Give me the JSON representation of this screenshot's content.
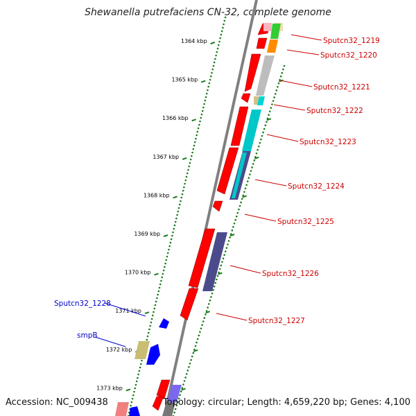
{
  "title": "Shewanella putrefaciens CN-32, complete genome",
  "footer": {
    "accession": "Accession: NC_009438",
    "summary": "Topology: circular; Length: 4,659,220 bp; Genes: 4,100"
  },
  "ruler": {
    "ticks": [
      "1364 kbp",
      "1365 kbp",
      "1366 kbp",
      "1367 kbp",
      "1368 kbp",
      "1369 kbp",
      "1370 kbp",
      "1371 kbp",
      "1372 kbp",
      "1373 kbp"
    ]
  },
  "gene_labels": {
    "right": [
      "Sputcn32_1219",
      "Sputcn32_1220",
      "Sputcn32_1221",
      "Sputcn32_1222",
      "Sputcn32_1223",
      "Sputcn32_1224",
      "Sputcn32_1225",
      "Sputcn32_1226",
      "Sputcn32_1227"
    ],
    "left": [
      "Sputcn32_1228",
      "smpB"
    ]
  },
  "colors": {
    "gene_label_right": "#cc0000",
    "gene_label_left": "#0000cc",
    "forward_cds": "#ff0000",
    "reverse_cds": "#0000ff",
    "backbone": "#808080",
    "tick": "#1a7a1a"
  }
}
